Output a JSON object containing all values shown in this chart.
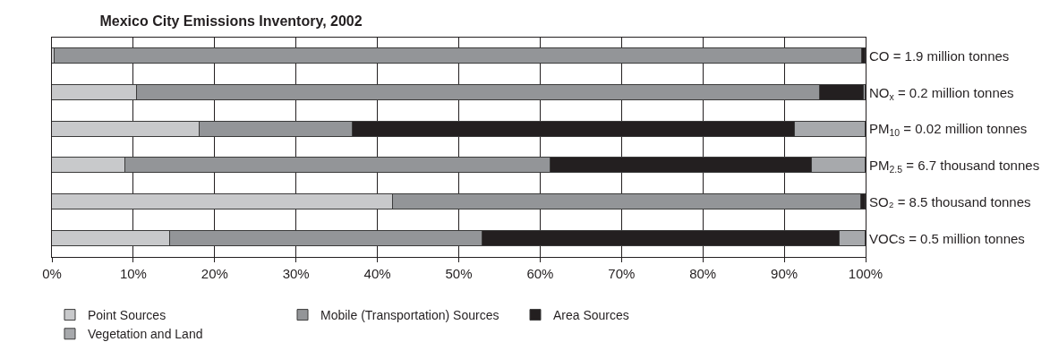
{
  "chart_data": {
    "type": "bar",
    "orientation": "horizontal",
    "stacked": true,
    "title": "Mexico City Emissions Inventory, 2002",
    "categories": [
      "CO = 1.9 million tonnes",
      "NO$_{x}$ = 0.2 million tonnes",
      "PM$_{10}$ = 0.02 million tonnes",
      "PM$_{2.5}$ = 6.7 thousand tonnes",
      "SO₂ = 8.5 thousand tonnes",
      "VOCs = 0.5 million tonnes"
    ],
    "series": [
      {
        "name": "Point Sources",
        "color": "#c8c9cb",
        "values": [
          0.3,
          10.5,
          18.2,
          9.0,
          41.9,
          14.5
        ]
      },
      {
        "name": "Mobile (Transportation) Sources",
        "color": "#939598",
        "values": [
          99.3,
          83.9,
          18.8,
          52.3,
          57.6,
          38.4
        ]
      },
      {
        "name": "Area Sources",
        "color": "#231f20",
        "values": [
          0.4,
          5.4,
          54.3,
          32.1,
          0.5,
          43.9
        ]
      },
      {
        "name": "Vegetation and Land",
        "color": "#a7a9ac",
        "values": [
          null,
          0.2,
          8.7,
          6.6,
          null,
          3.2
        ]
      }
    ],
    "xlim": [
      0,
      100
    ],
    "xticks": [
      {
        "value": 0,
        "label": "0%"
      },
      {
        "value": 10,
        "label": "10%"
      },
      {
        "value": 20,
        "label": "20%"
      },
      {
        "value": 30,
        "label": "30%"
      },
      {
        "value": 40,
        "label": "40%"
      },
      {
        "value": 50,
        "label": "50%"
      },
      {
        "value": 60,
        "label": "60%"
      },
      {
        "value": 70,
        "label": "70%"
      },
      {
        "value": 80,
        "label": "80%"
      },
      {
        "value": 90,
        "label": "90%"
      },
      {
        "value": 100,
        "label": "100%"
      }
    ],
    "grid": "x",
    "legend": "bottom"
  }
}
